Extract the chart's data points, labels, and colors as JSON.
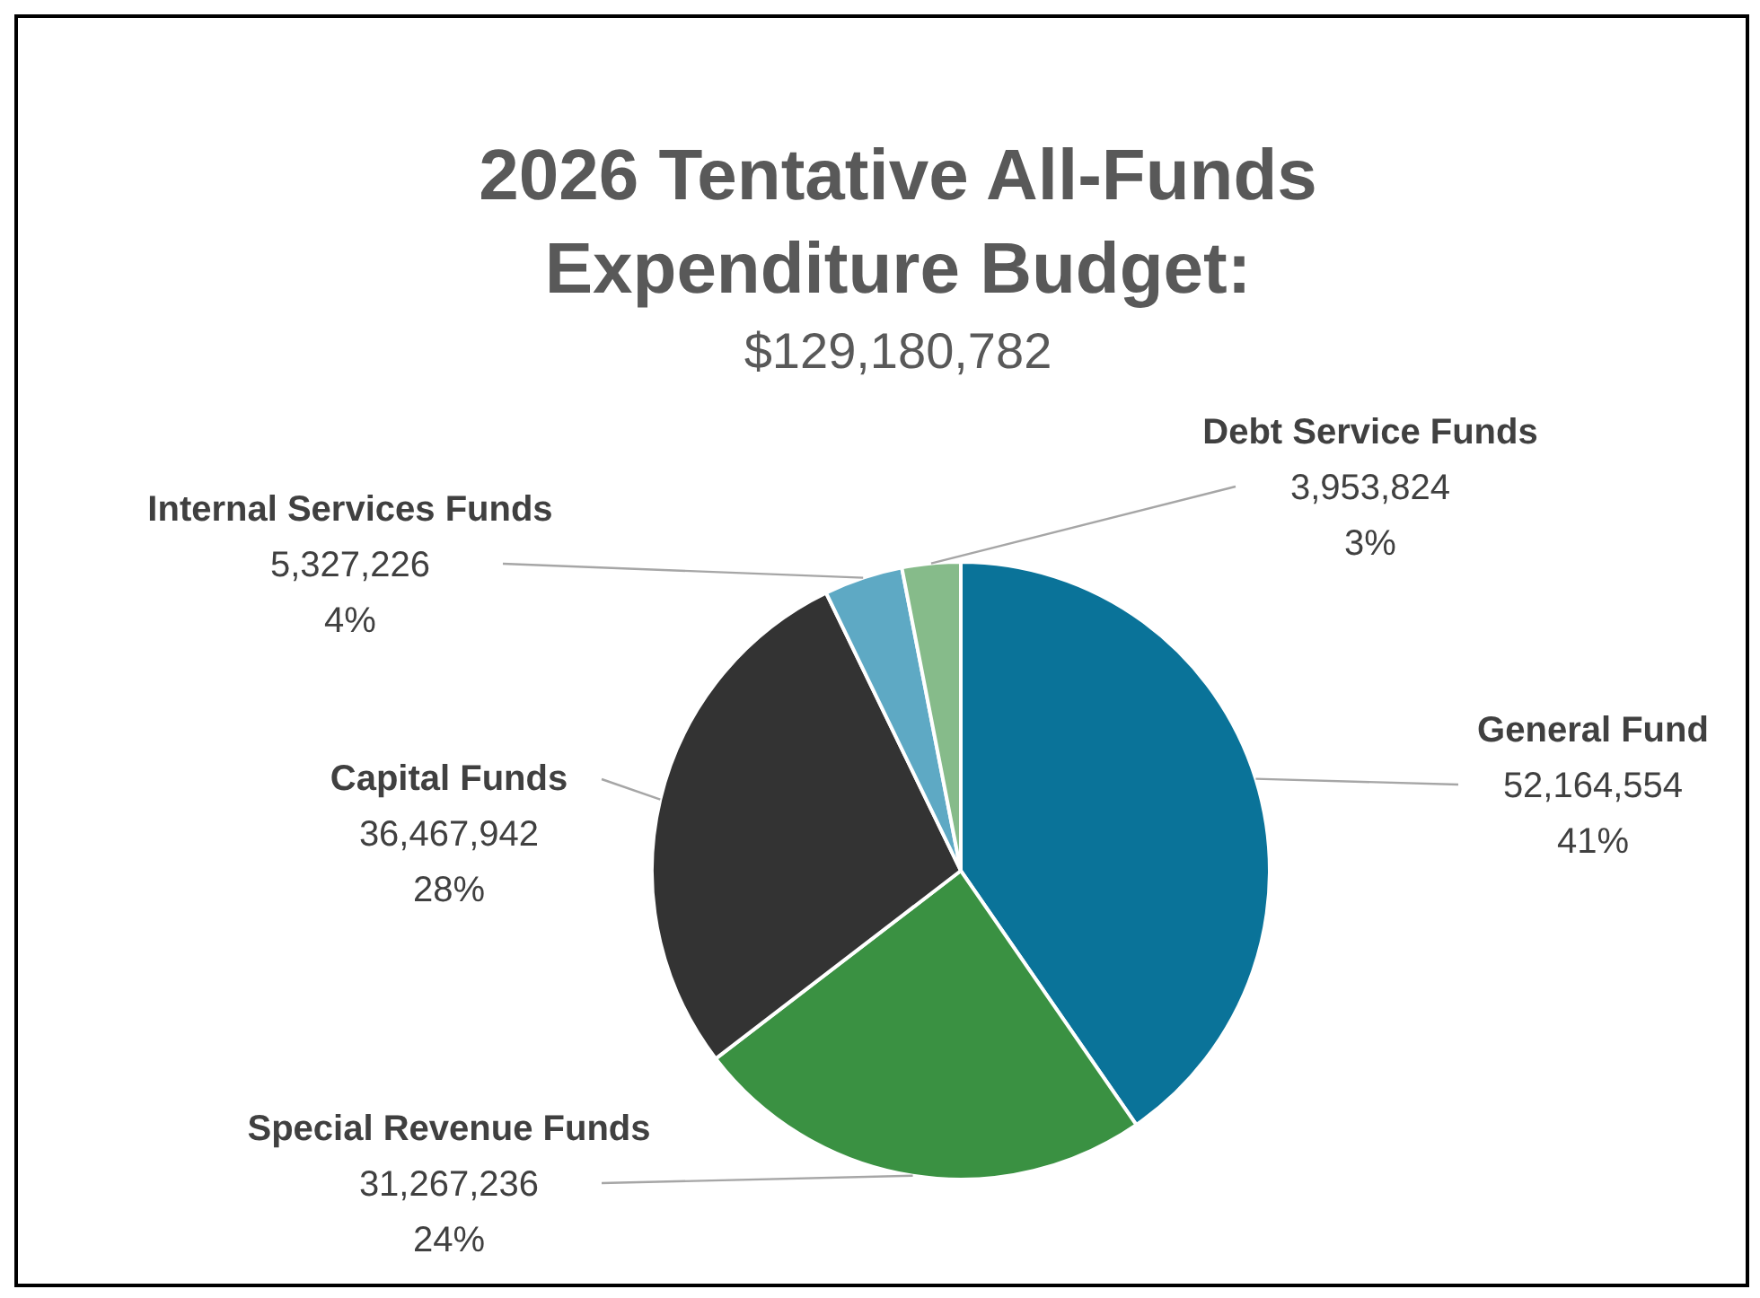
{
  "chart_data": {
    "type": "pie",
    "title": "2026 Tentative All-Funds Expenditure Budget:",
    "subtitle": "$129,180,782",
    "categories": [
      "General Fund",
      "Special Revenue Funds",
      "Capital Funds",
      "Internal Services Funds",
      "Debt Service Funds"
    ],
    "values": [
      52164554,
      31267236,
      36467942,
      5327226,
      3953824
    ],
    "colors": [
      "#0a7399",
      "#3a9142",
      "#333333",
      "#5ea9c4",
      "#86bb8a"
    ],
    "value_labels": [
      "52,164,554\n41%",
      "31,267,236\n24%",
      "36,467,942\n28%",
      "5,327,226\n4%",
      "3,953,824\n3%"
    ],
    "legend": false
  }
}
